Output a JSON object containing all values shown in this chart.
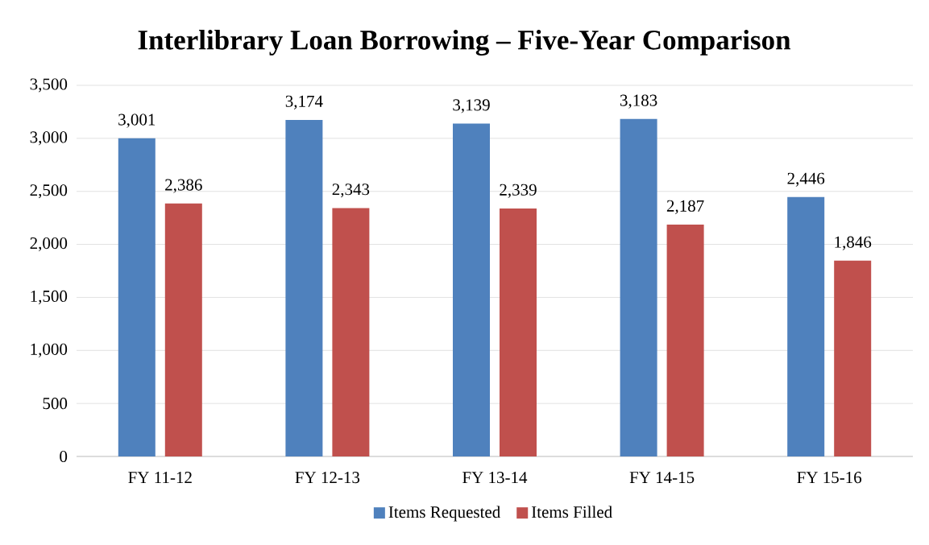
{
  "chart_data": {
    "type": "bar",
    "title": "Interlibrary Loan Borrowing – Five-Year Comparison",
    "categories": [
      "FY 11-12",
      "FY 12-13",
      "FY 13-14",
      "FY 14-15",
      "FY 15-16"
    ],
    "series": [
      {
        "name": "Items Requested",
        "color": "#4f81bd",
        "values": [
          3001,
          3174,
          3139,
          3183,
          2446
        ],
        "value_labels": [
          "3,001",
          "3,174",
          "3,139",
          "3,183",
          "2,446"
        ]
      },
      {
        "name": "Items Filled",
        "color": "#c0504d",
        "values": [
          2386,
          2343,
          2339,
          2187,
          1846
        ],
        "value_labels": [
          "2,386",
          "2,343",
          "2,339",
          "2,187",
          "1,846"
        ]
      }
    ],
    "ylim": [
      0,
      3500
    ],
    "yticks": [
      {
        "value": 0,
        "label": "0"
      },
      {
        "value": 500,
        "label": "500"
      },
      {
        "value": 1000,
        "label": "1,000"
      },
      {
        "value": 1500,
        "label": "1,500"
      },
      {
        "value": 2000,
        "label": "2,000"
      },
      {
        "value": 2500,
        "label": "2,500"
      },
      {
        "value": 3000,
        "label": "3,000"
      },
      {
        "value": 3500,
        "label": "3,500"
      }
    ],
    "grid": "y",
    "legend": "bottom"
  }
}
